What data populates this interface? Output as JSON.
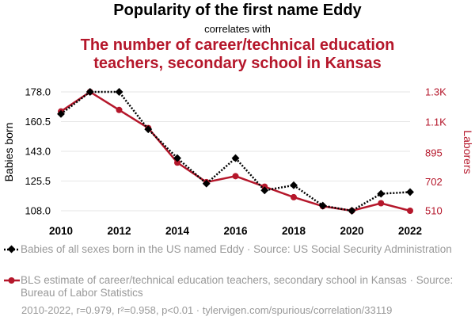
{
  "header": {
    "title": "Popularity of the first name Eddy",
    "connector": "correlates with",
    "subtitle_line1": "The number of career/technical education",
    "subtitle_line2": "teachers, secondary school in Kansas"
  },
  "colors": {
    "series1": "#000000",
    "series2": "#b5172b",
    "grid": "#e6e6e6",
    "footer": "#999999"
  },
  "chart_data": {
    "type": "line",
    "x": [
      2010,
      2011,
      2012,
      2013,
      2014,
      2015,
      2016,
      2017,
      2018,
      2019,
      2020,
      2021,
      2022
    ],
    "x_ticks": [
      "2010",
      "2012",
      "2014",
      "2016",
      "2018",
      "2020",
      "2022"
    ],
    "y_left": {
      "label": "Babies born",
      "range": [
        108,
        178
      ],
      "ticks": [
        108,
        125.5,
        143,
        160.5,
        178
      ],
      "tick_labels": [
        "108.0",
        "125.5",
        "143.0",
        "160.5",
        "178.0"
      ]
    },
    "y_right": {
      "label": "Laborers",
      "range": [
        510,
        1300
      ],
      "ticks": [
        510,
        702,
        895,
        1100,
        1300
      ],
      "tick_labels": [
        "510",
        "702",
        "895",
        "1.1K",
        "1.3K"
      ]
    },
    "series": [
      {
        "name": "Babies of all sexes born in the US named Eddy · Source: US Social Security Administration",
        "axis": "left",
        "style": "dotted-diamond",
        "values": [
          165,
          178,
          178,
          156,
          139,
          124,
          139,
          120,
          123,
          111,
          108,
          118,
          119
        ]
      },
      {
        "name": "BLS estimate of career/technical education teachers, secondary school in Kansas · Source: Bureau of Labor Statistics",
        "axis": "right",
        "style": "solid-circle",
        "values": [
          1170,
          1300,
          1180,
          1060,
          830,
          700,
          740,
          670,
          600,
          540,
          510,
          560,
          510
        ]
      }
    ],
    "grid": true
  },
  "footer": {
    "stats": "2010-2022, r=0.979, r²=0.958, p<0.01 · tylervigen.com/spurious/correlation/33119"
  }
}
